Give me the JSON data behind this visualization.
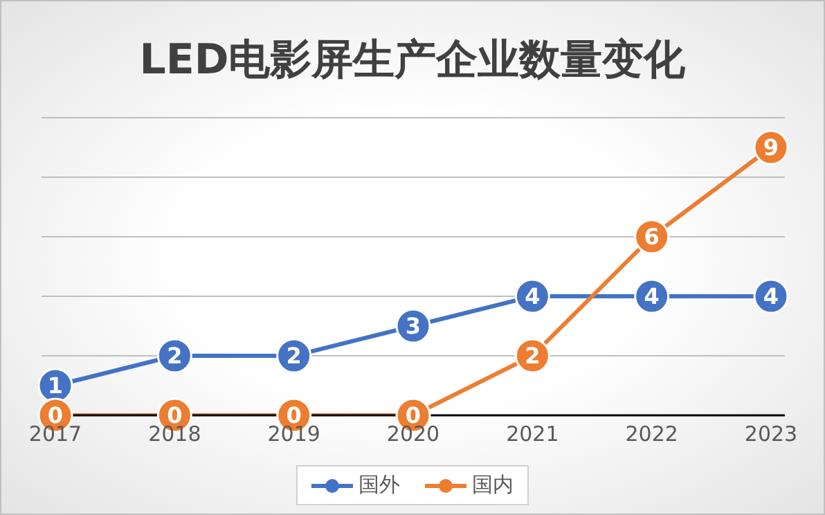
{
  "chart_data": {
    "type": "line",
    "title": "LED电影屏生产企业数量变化",
    "categories": [
      "2017",
      "2018",
      "2019",
      "2020",
      "2021",
      "2022",
      "2023"
    ],
    "series": [
      {
        "name": "国外",
        "color": "#4472c4",
        "values": [
          1,
          2,
          2,
          3,
          4,
          4,
          4
        ]
      },
      {
        "name": "国内",
        "color": "#ed7d31",
        "values": [
          0,
          0,
          0,
          0,
          2,
          6,
          9
        ]
      }
    ],
    "ylim": [
      0,
      10
    ],
    "tick_labels": "x",
    "grid": "y",
    "legend": "bottom",
    "marker": "circle",
    "data_labels": true,
    "line_style": "solid"
  }
}
